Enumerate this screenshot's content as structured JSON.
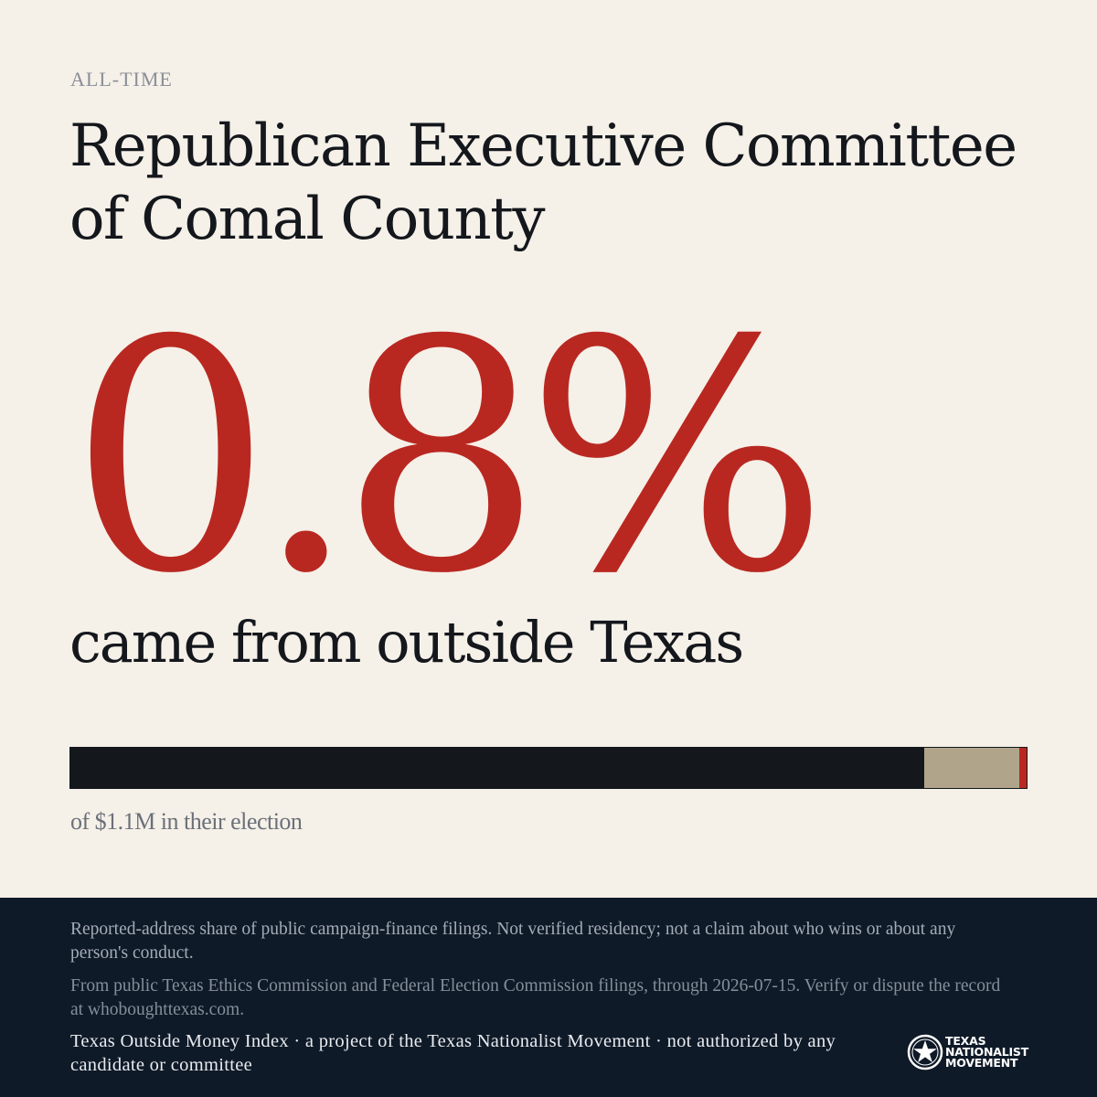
{
  "header": {
    "eyebrow": "ALL-TIME",
    "title": "Republican Executive Committee of Comal County"
  },
  "headline": {
    "percent": "0.8%",
    "subtitle": "came from outside Texas"
  },
  "share_bar": {
    "segments": [
      {
        "key": "texas",
        "fraction": 0.893,
        "color": "#14171c"
      },
      {
        "key": "other",
        "fraction": 0.099,
        "color": "#b0a58a"
      },
      {
        "key": "outside_texas",
        "fraction": 0.008,
        "color": "#b82821"
      }
    ],
    "caption": "of $1.1M in their election"
  },
  "footer": {
    "disclaimer": "Reported-address share of public campaign-finance filings. Not verified residency; not a claim about who wins or about any person's conduct.",
    "source": "From public Texas Ethics Commission and Federal Election Commission filings, through 2026-07-15. Verify or dispute the record at whoboughttexas.com.",
    "credit": "Texas Outside Money Index · a project of the Texas Nationalist Movement · not authorized by any candidate or committee",
    "brand": {
      "line1": "TEXAS",
      "line2": "NATIONALIST",
      "line3": "MOVEMENT",
      "seal_icon": "star-seal-icon"
    }
  }
}
